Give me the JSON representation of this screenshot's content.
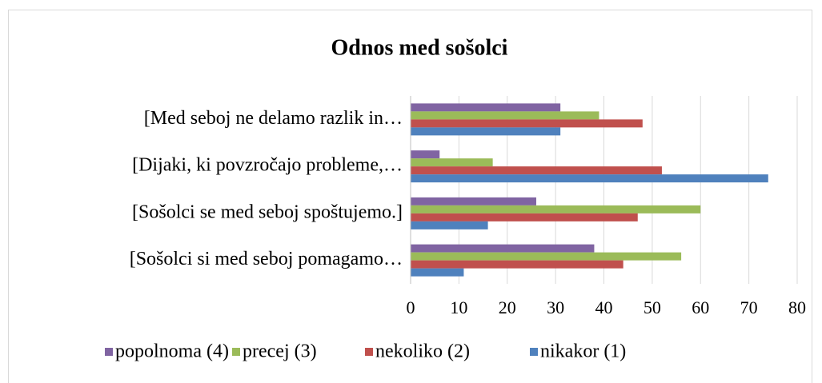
{
  "chart_data": {
    "type": "hbar",
    "title": "Odnos med sošolci",
    "categories": [
      "[Med seboj ne delamo razlik in…",
      "[Dijaki, ki povzročajo probleme,…",
      "[Sošolci se med seboj spoštujemo.]",
      "[Sošolci si med seboj pomagamo…"
    ],
    "series": [
      {
        "name": "popolnoma (4)",
        "color": "#8064a2",
        "values": [
          31,
          6,
          26,
          38
        ]
      },
      {
        "name": "precej (3)",
        "color": "#9bbb59",
        "values": [
          39,
          17,
          60,
          56
        ]
      },
      {
        "name": "nekoliko (2)",
        "color": "#c0504d",
        "values": [
          48,
          52,
          47,
          44
        ]
      },
      {
        "name": "nikakor (1)",
        "color": "#4f81bd",
        "values": [
          31,
          74,
          16,
          11
        ]
      }
    ],
    "xlim": [
      0,
      80
    ],
    "xticks": [
      0,
      10,
      20,
      30,
      40,
      50,
      60,
      70,
      80
    ],
    "grid": true,
    "legend": "bottom"
  }
}
